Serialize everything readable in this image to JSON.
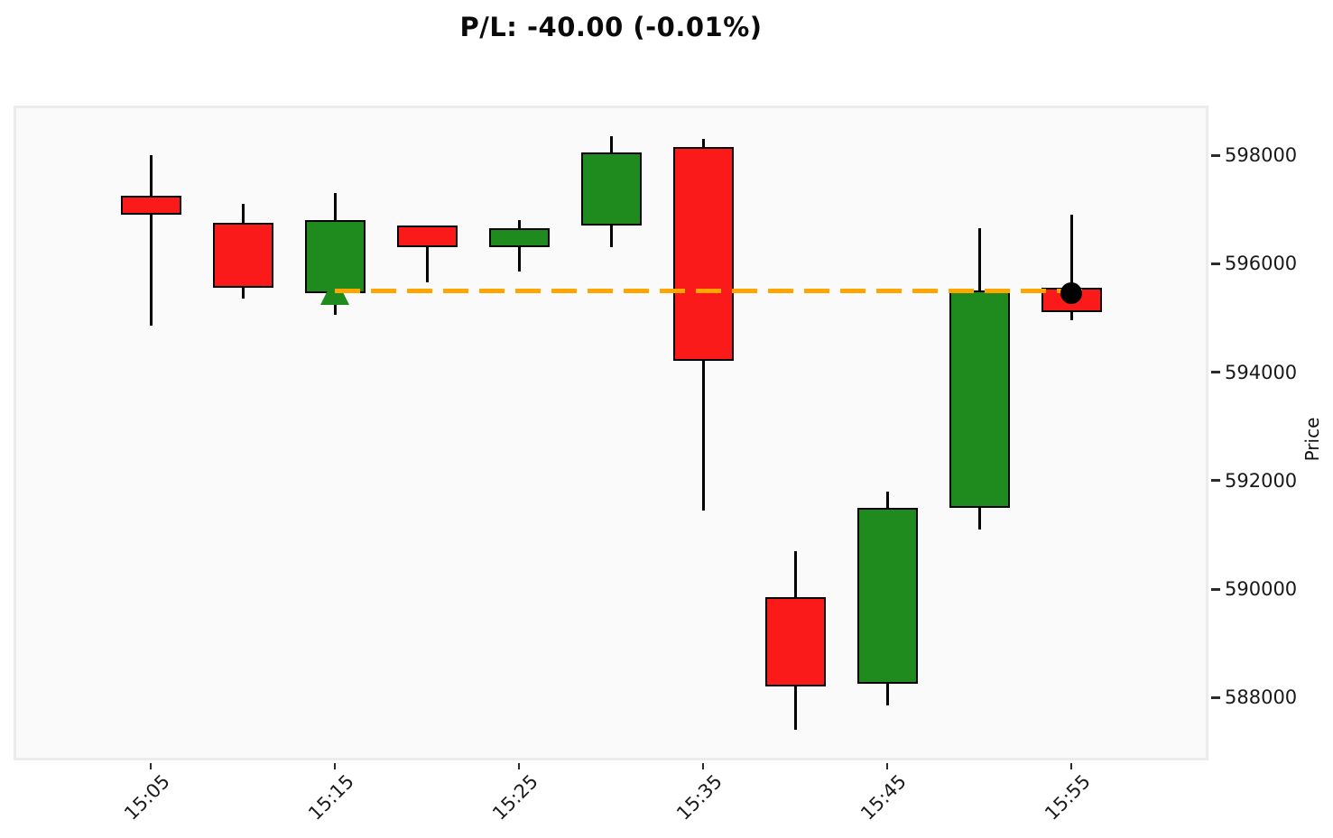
{
  "chart_data": {
    "type": "candlestick",
    "title": "P/L: -40.00 (-0.01%)",
    "ylabel": "Price",
    "grid": false,
    "legend": "none",
    "x_axis": {
      "tick_labels": [
        "15:05",
        "15:15",
        "15:25",
        "15:35",
        "15:45",
        "15:55"
      ],
      "tick_rotation": 45
    },
    "y_axis": {
      "side": "right",
      "ticks": [
        "598000",
        "596000",
        "594000",
        "592000",
        "590000",
        "588000"
      ],
      "tick_values": [
        598000,
        596000,
        594000,
        592000,
        590000,
        588000
      ],
      "ylim": [
        586840,
        598915
      ]
    },
    "categories": [
      "15:05",
      "15:10",
      "15:15",
      "15:20",
      "15:25",
      "15:30",
      "15:35",
      "15:40",
      "15:45",
      "15:50",
      "15:55"
    ],
    "ohlc": [
      {
        "time": "15:05",
        "open": 597250,
        "high": 598000,
        "low": 594850,
        "close": 596900
      },
      {
        "time": "15:10",
        "open": 596750,
        "high": 597100,
        "low": 595350,
        "close": 595550
      },
      {
        "time": "15:15",
        "open": 595450,
        "high": 597300,
        "low": 595050,
        "close": 596800
      },
      {
        "time": "15:20",
        "open": 596700,
        "high": 596700,
        "low": 595650,
        "close": 596300
      },
      {
        "time": "15:25",
        "open": 596300,
        "high": 596800,
        "low": 595850,
        "close": 596650
      },
      {
        "time": "15:30",
        "open": 596700,
        "high": 598350,
        "low": 596300,
        "close": 598050
      },
      {
        "time": "15:35",
        "open": 598150,
        "high": 598300,
        "low": 591450,
        "close": 594200
      },
      {
        "time": "15:40",
        "open": 589850,
        "high": 590700,
        "low": 587400,
        "close": 588200
      },
      {
        "time": "15:45",
        "open": 588250,
        "high": 591800,
        "low": 587850,
        "close": 591500
      },
      {
        "time": "15:50",
        "open": 591500,
        "high": 596650,
        "low": 591100,
        "close": 595500
      },
      {
        "time": "15:55",
        "open": 595550,
        "high": 596900,
        "low": 594950,
        "close": 595100
      }
    ],
    "colors": {
      "up": "#1f8b1f",
      "down": "#fb1a1a",
      "outline": "#000000",
      "entry_line": "#ffa500",
      "buy_marker": "#1f8b1f",
      "position_marker": "#000000",
      "plot_bg": "#fafafa",
      "figure_bg": "#ffffff"
    },
    "entry_line": {
      "price": 595500,
      "from_time": "15:15",
      "to_time": "15:55",
      "style": "dashed"
    },
    "markers": [
      {
        "name": "buy-marker",
        "shape": "triangle-up",
        "time": "15:15",
        "price": 595500
      },
      {
        "name": "position-marker",
        "shape": "circle",
        "time": "15:55",
        "price": 595460
      }
    ]
  }
}
